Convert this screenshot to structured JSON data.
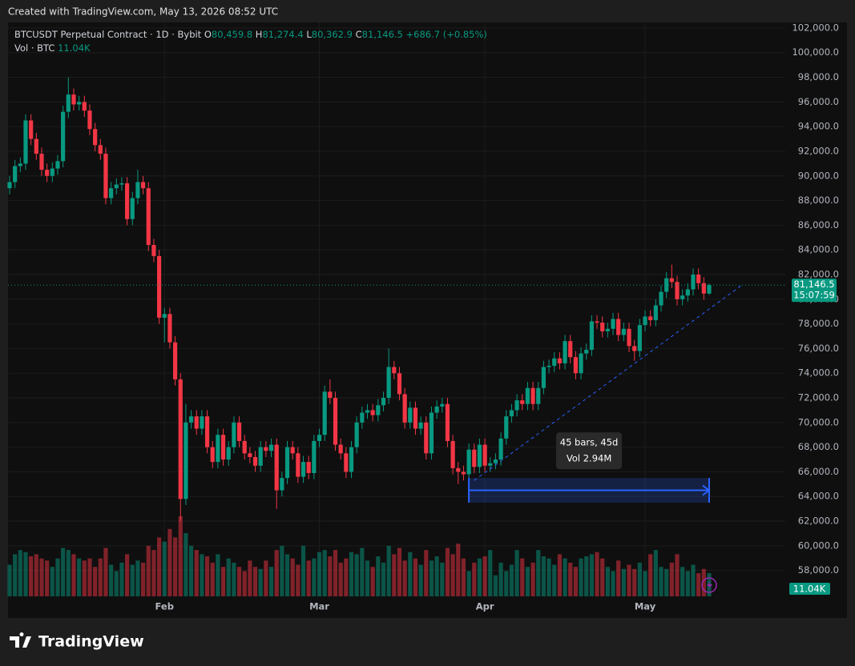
{
  "header": {
    "created": "Created with TradingView.com, May 13, 2026 08:52 UTC"
  },
  "legend": {
    "symbol": "BTCUSDT Perpetual Contract · 1D · Bybit",
    "o_key": "O",
    "o": "80,459.8",
    "h_key": "H",
    "h": "81,274.4",
    "l_key": "L",
    "l": "80,362.9",
    "c_key": "C",
    "c": "81,146.5",
    "change": "+686.7 (+0.85%)",
    "vol_key": "Vol · BTC",
    "vol": "11.04K"
  },
  "logo": "TradingView",
  "chart_data": {
    "type": "candlestick",
    "categories": [
      null,
      null,
      null,
      null,
      null,
      null,
      null,
      null,
      null,
      null,
      null,
      null,
      null,
      null,
      null,
      null,
      null,
      null,
      null,
      null,
      null,
      null,
      null,
      null,
      null,
      null,
      null,
      null,
      null,
      "Feb",
      null,
      null,
      null,
      null,
      null,
      null,
      null,
      null,
      null,
      null,
      null,
      null,
      null,
      null,
      null,
      null,
      null,
      null,
      null,
      null,
      null,
      null,
      null,
      null,
      null,
      null,
      null,
      null,
      "Mar",
      null,
      null,
      null,
      null,
      null,
      null,
      null,
      null,
      null,
      null,
      null,
      null,
      null,
      null,
      null,
      null,
      null,
      null,
      null,
      null,
      null,
      null,
      null,
      null,
      null,
      null,
      null,
      null,
      null,
      null,
      "Apr",
      null,
      null,
      null,
      null,
      null,
      null,
      null,
      null,
      null,
      null,
      null,
      null,
      null,
      null,
      null,
      null,
      null,
      null,
      null,
      null,
      null,
      null,
      null,
      null,
      null,
      null,
      null,
      null,
      null,
      "May",
      null,
      null,
      null,
      null,
      null,
      null,
      null,
      null,
      null,
      null,
      null,
      null
    ],
    "open": [
      89000,
      89500,
      90800,
      91000,
      94500,
      93000,
      91800,
      90500,
      90000,
      90600,
      91200,
      95200,
      96600,
      95800,
      96000,
      95300,
      93800,
      92500,
      91800,
      88200,
      89000,
      89300,
      89400,
      86500,
      88200,
      89500,
      89000,
      84400,
      83500,
      78500,
      78800,
      76500,
      73500,
      63800,
      70000,
      70500,
      69500,
      70500,
      68000,
      66800,
      69000,
      67000,
      68000,
      70000,
      68500,
      67500,
      67200,
      66500,
      68000,
      67700,
      68200,
      64500,
      65500,
      68000,
      67500,
      65600,
      66800,
      65900,
      68500,
      69000,
      72500,
      72000,
      68200,
      67500,
      66000,
      68000,
      70000,
      70800,
      71000,
      70600,
      71400,
      72000,
      74500,
      74000,
      72300,
      70000,
      71200,
      69500,
      70000,
      67500,
      70800,
      71300,
      71500,
      68500,
      66300,
      66000,
      65800,
      67800,
      66400,
      68200,
      66500,
      66700,
      67000,
      68700,
      70500,
      71000,
      71800,
      71500,
      72800,
      71500,
      72800,
      74500,
      74600,
      75200,
      74800,
      76600,
      75300,
      74000,
      75600,
      75900,
      78200,
      78100,
      77400,
      77600,
      78400,
      77100,
      77600,
      76200,
      75800,
      77900,
      78600,
      78300,
      79500,
      80600,
      81700,
      81400,
      80000,
      80300,
      80800,
      82000,
      81300,
      80459.8
    ],
    "high": [
      90000,
      91300,
      91500,
      95000,
      95000,
      93500,
      92300,
      91000,
      91100,
      91700,
      95700,
      98000,
      97100,
      96500,
      96500,
      95800,
      94300,
      93000,
      92300,
      89500,
      89800,
      89900,
      89900,
      88700,
      90500,
      90000,
      89500,
      84900,
      84000,
      79300,
      79300,
      77000,
      74000,
      71500,
      71000,
      71000,
      71000,
      71000,
      68500,
      69500,
      69500,
      68500,
      70500,
      70500,
      69000,
      68000,
      67700,
      68500,
      68500,
      68700,
      68700,
      66000,
      68500,
      68500,
      68000,
      67300,
      67300,
      69000,
      69500,
      73000,
      73500,
      72500,
      68700,
      68000,
      68500,
      70500,
      71300,
      71500,
      71500,
      71900,
      72500,
      76000,
      75000,
      74500,
      72800,
      71700,
      71700,
      70500,
      70500,
      71300,
      71800,
      72000,
      72000,
      69000,
      66800,
      66500,
      68300,
      68300,
      68700,
      68700,
      67200,
      67500,
      69200,
      71000,
      71500,
      72300,
      72300,
      73300,
      73300,
      73300,
      75000,
      75100,
      75700,
      75700,
      77100,
      77100,
      75800,
      76100,
      76400,
      78700,
      78700,
      78600,
      78100,
      78900,
      78900,
      78100,
      78100,
      76700,
      78400,
      79100,
      79100,
      80000,
      81100,
      82200,
      82800,
      81900,
      80800,
      81300,
      82500,
      82500,
      81800,
      81274.4
    ],
    "low": [
      88500,
      89000,
      90300,
      90500,
      92500,
      91300,
      90000,
      89500,
      89500,
      90100,
      90700,
      94700,
      95300,
      95300,
      94800,
      93300,
      92000,
      91300,
      87700,
      87700,
      88500,
      88800,
      86000,
      86000,
      87700,
      88500,
      83900,
      83000,
      78000,
      76500,
      76000,
      73000,
      62000,
      63300,
      69500,
      69000,
      69000,
      67500,
      66300,
      66300,
      66500,
      66500,
      67500,
      68000,
      67000,
      66700,
      66000,
      66000,
      67200,
      67200,
      63000,
      64000,
      65000,
      67000,
      65100,
      65100,
      65400,
      65400,
      68000,
      68500,
      71500,
      67700,
      67000,
      65500,
      65500,
      67500,
      69500,
      70300,
      70100,
      70100,
      70900,
      71500,
      73500,
      71800,
      69500,
      69500,
      69000,
      69000,
      67000,
      67000,
      70300,
      70800,
      68000,
      65800,
      65000,
      65300,
      65300,
      65900,
      65900,
      66000,
      66000,
      66200,
      66500,
      68200,
      70000,
      70500,
      71000,
      71000,
      71000,
      71000,
      72300,
      74000,
      74100,
      74300,
      74300,
      74800,
      73500,
      73500,
      75100,
      75400,
      77600,
      76900,
      76900,
      77100,
      76600,
      76600,
      75700,
      75000,
      75300,
      77400,
      77800,
      77800,
      79000,
      80100,
      80900,
      79500,
      79500,
      79800,
      80300,
      80800,
      79960,
      80362.9
    ],
    "close": [
      89500,
      90800,
      91000,
      94500,
      93000,
      91800,
      90500,
      90000,
      90600,
      91200,
      95200,
      96600,
      95800,
      96000,
      95300,
      93800,
      92500,
      91800,
      88200,
      89000,
      89300,
      89400,
      86500,
      88200,
      89500,
      89000,
      84400,
      83500,
      78500,
      78800,
      76500,
      73500,
      63800,
      70000,
      70500,
      69500,
      70500,
      68000,
      66800,
      69000,
      67000,
      68000,
      70000,
      68500,
      67500,
      67200,
      66500,
      68000,
      67700,
      68200,
      64500,
      65500,
      68000,
      67500,
      65600,
      66800,
      65900,
      68500,
      69000,
      72500,
      72000,
      68200,
      67500,
      66000,
      68000,
      70000,
      70800,
      71000,
      70600,
      71400,
      72000,
      74500,
      74000,
      72300,
      70000,
      71200,
      69500,
      70000,
      67500,
      70800,
      71300,
      71500,
      68500,
      66300,
      66000,
      65800,
      67800,
      66400,
      68200,
      66500,
      66700,
      67000,
      68700,
      70500,
      71000,
      71800,
      71500,
      72800,
      71500,
      72800,
      74500,
      74600,
      75200,
      74800,
      76600,
      75300,
      74000,
      75600,
      75900,
      78200,
      78100,
      77400,
      77600,
      78400,
      77100,
      77600,
      76200,
      75800,
      77900,
      78600,
      78300,
      79500,
      80600,
      81700,
      81400,
      80000,
      80300,
      80800,
      82000,
      81300,
      80459.8,
      81146.5
    ],
    "volume": [
      15000,
      20000,
      22000,
      21000,
      19000,
      20000,
      18000,
      17000,
      14000,
      18000,
      23000,
      22000,
      20000,
      18000,
      17000,
      18000,
      14000,
      18000,
      23000,
      15000,
      12000,
      16000,
      20000,
      15000,
      17000,
      16000,
      24000,
      22000,
      28000,
      26000,
      32000,
      28000,
      38000,
      30000,
      24000,
      22000,
      20000,
      19000,
      16000,
      20000,
      14000,
      18000,
      16000,
      14000,
      12000,
      17000,
      14000,
      13000,
      17000,
      14000,
      22000,
      24000,
      20000,
      18000,
      15000,
      24000,
      17000,
      18000,
      21000,
      22000,
      19000,
      22000,
      16000,
      18000,
      21000,
      20000,
      23000,
      17000,
      14000,
      19000,
      16000,
      24000,
      20000,
      23000,
      17000,
      21000,
      18000,
      15000,
      22000,
      17000,
      19000,
      16000,
      23000,
      20000,
      25000,
      18000,
      12000,
      16000,
      18000,
      19000,
      22000,
      10000,
      16000,
      12000,
      15000,
      22000,
      18000,
      14000,
      16000,
      22000,
      19000,
      18000,
      15000,
      20000,
      18000,
      16000,
      14000,
      18000,
      19000,
      20000,
      21000,
      18000,
      14000,
      12000,
      17000,
      13000,
      15000,
      13000,
      16000,
      12000,
      20000,
      22000,
      14000,
      13000,
      16000,
      20000,
      14000,
      12000,
      15000,
      11000,
      13000,
      11040
    ],
    "volume_label": "11.04K",
    "up_color": "#089981",
    "down_color": "#f23645",
    "ylim": [
      55900,
      102450
    ],
    "yticks": [
      {
        "value": 58000,
        "label": "58,000.0"
      },
      {
        "value": 60000,
        "label": "60,000.0"
      },
      {
        "value": 62000,
        "label": "62,000.0"
      },
      {
        "value": 64000,
        "label": "64,000.0"
      },
      {
        "value": 66000,
        "label": "66,000.0"
      },
      {
        "value": 68000,
        "label": "68,000.0"
      },
      {
        "value": 70000,
        "label": "70,000.0"
      },
      {
        "value": 72000,
        "label": "72,000.0"
      },
      {
        "value": 74000,
        "label": "74,000.0"
      },
      {
        "value": 76000,
        "label": "76,000.0"
      },
      {
        "value": 78000,
        "label": "78,000.0"
      },
      {
        "value": 80000,
        "label": "80,000.0"
      },
      {
        "value": 82000,
        "label": "82,000.0"
      },
      {
        "value": 84000,
        "label": "84,000.0"
      },
      {
        "value": 86000,
        "label": "86,000.0"
      },
      {
        "value": 88000,
        "label": "88,000.0"
      },
      {
        "value": 90000,
        "label": "90,000.0"
      },
      {
        "value": 92000,
        "label": "92,000.0"
      },
      {
        "value": 94000,
        "label": "94,000.0"
      },
      {
        "value": 96000,
        "label": "96,000.0"
      },
      {
        "value": 98000,
        "label": "98,000.0"
      },
      {
        "value": 100000,
        "label": "100,000.0"
      },
      {
        "value": 102000,
        "label": "102,000.0"
      }
    ],
    "grid": true,
    "last_price": {
      "value": 81146.5,
      "label": "81,146.5",
      "countdown": "15:07:59"
    },
    "trendline": {
      "x": [
        87,
        137
      ],
      "y": [
        65300,
        81100
      ],
      "color": "#2962ff"
    },
    "measure": {
      "start": 86,
      "end": 131,
      "top": 65500,
      "bottom": 63500,
      "bars": "45 bars, 45d",
      "vol": "Vol 2.94M",
      "color": "#2962ff"
    }
  }
}
